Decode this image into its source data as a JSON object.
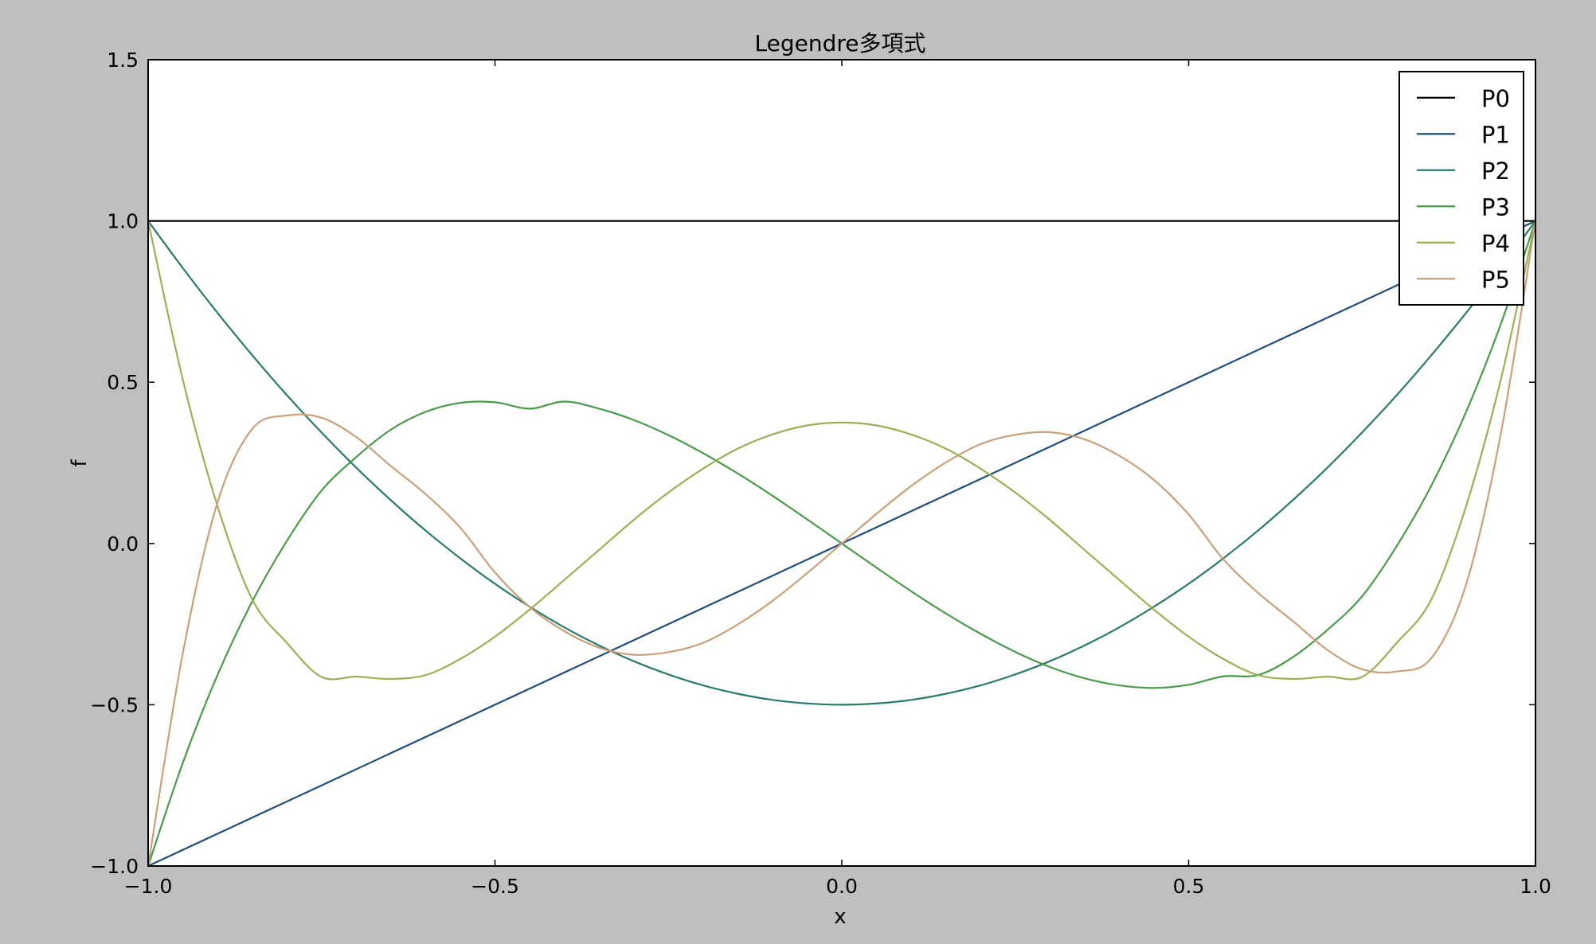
{
  "window": {
    "background": "#bfbfbf"
  },
  "chart_data": {
    "type": "line",
    "title": "Legendre多項式",
    "xlabel": "x",
    "ylabel": "f",
    "xlim": [
      -1.0,
      1.0
    ],
    "ylim": [
      -1.0,
      1.5
    ],
    "xticks": [
      -1.0,
      -0.5,
      0.0,
      0.5,
      1.0
    ],
    "xtick_labels": [
      "−1.0",
      "−0.5",
      "0.0",
      "0.5",
      "1.0"
    ],
    "yticks": [
      -1.0,
      -0.5,
      0.0,
      0.5,
      1.0,
      1.5
    ],
    "ytick_labels": [
      "−1.0",
      "−0.5",
      "0.0",
      "0.5",
      "1.0",
      "1.5"
    ],
    "grid": false,
    "legend_position": "top-right",
    "x": [
      -1.0,
      -0.95,
      -0.9,
      -0.85,
      -0.8,
      -0.75,
      -0.7,
      -0.65,
      -0.6,
      -0.55,
      -0.5,
      -0.45,
      -0.4,
      -0.35,
      -0.3,
      -0.25,
      -0.2,
      -0.15,
      -0.1,
      -0.05,
      0.0,
      0.05,
      0.1,
      0.15,
      0.2,
      0.25,
      0.3,
      0.35,
      0.4,
      0.45,
      0.5,
      0.55,
      0.6,
      0.65,
      0.7,
      0.75,
      0.8,
      0.85,
      0.9,
      0.95,
      1.0
    ],
    "series": [
      {
        "name": "P0",
        "color": "#000000",
        "values": [
          1,
          1,
          1,
          1,
          1,
          1,
          1,
          1,
          1,
          1,
          1,
          1,
          1,
          1,
          1,
          1,
          1,
          1,
          1,
          1,
          1,
          1,
          1,
          1,
          1,
          1,
          1,
          1,
          1,
          1,
          1,
          1,
          1,
          1,
          1,
          1,
          1,
          1,
          1,
          1,
          1
        ]
      },
      {
        "name": "P1",
        "color": "#1f4e79",
        "values": [
          -1.0,
          -0.95,
          -0.9,
          -0.85,
          -0.8,
          -0.75,
          -0.7,
          -0.65,
          -0.6,
          -0.55,
          -0.5,
          -0.45,
          -0.4,
          -0.35,
          -0.3,
          -0.25,
          -0.2,
          -0.15,
          -0.1,
          -0.05,
          0.0,
          0.05,
          0.1,
          0.15,
          0.2,
          0.25,
          0.3,
          0.35,
          0.4,
          0.45,
          0.5,
          0.55,
          0.6,
          0.65,
          0.7,
          0.75,
          0.8,
          0.85,
          0.9,
          0.95,
          1.0
        ]
      },
      {
        "name": "P2",
        "color": "#2a7a6b",
        "values": [
          1.0,
          0.854,
          0.715,
          0.584,
          0.46,
          0.344,
          0.235,
          0.134,
          0.04,
          -0.046,
          -0.125,
          -0.196,
          -0.26,
          -0.316,
          -0.365,
          -0.406,
          -0.44,
          -0.466,
          -0.485,
          -0.496,
          -0.5,
          -0.496,
          -0.485,
          -0.466,
          -0.44,
          -0.406,
          -0.365,
          -0.316,
          -0.26,
          -0.196,
          -0.125,
          -0.046,
          0.04,
          0.134,
          0.235,
          0.344,
          0.46,
          0.584,
          0.715,
          0.854,
          1.0
        ]
      },
      {
        "name": "P3",
        "color": "#4a9a4a",
        "values": [
          -1.0,
          -0.68,
          -0.408,
          -0.18,
          0.008,
          0.164,
          0.268,
          0.353,
          0.408,
          0.436,
          0.438,
          0.418,
          0.44,
          0.418,
          0.383,
          0.336,
          0.28,
          0.217,
          0.148,
          0.075,
          0.0,
          -0.075,
          -0.148,
          -0.217,
          -0.28,
          -0.336,
          -0.383,
          -0.418,
          -0.44,
          -0.448,
          -0.438,
          -0.412,
          -0.408,
          -0.353,
          -0.268,
          -0.164,
          -0.008,
          0.18,
          0.408,
          0.68,
          1.0
        ]
      },
      {
        "name": "P4",
        "color": "#9ab055",
        "values": [
          1.0,
          0.508,
          0.116,
          -0.173,
          -0.308,
          -0.414,
          -0.413,
          -0.42,
          -0.408,
          -0.358,
          -0.289,
          -0.205,
          -0.113,
          -0.02,
          0.073,
          0.158,
          0.232,
          0.294,
          0.338,
          0.366,
          0.375,
          0.366,
          0.338,
          0.294,
          0.232,
          0.158,
          0.073,
          -0.02,
          -0.113,
          -0.205,
          -0.289,
          -0.358,
          -0.408,
          -0.42,
          -0.413,
          -0.414,
          -0.308,
          -0.173,
          0.116,
          0.508,
          1.0
        ]
      },
      {
        "name": "P5",
        "color": "#c9a07a",
        "values": [
          -1.0,
          -0.34,
          0.127,
          0.355,
          0.397,
          0.39,
          0.33,
          0.24,
          0.153,
          0.049,
          -0.09,
          -0.197,
          -0.272,
          -0.323,
          -0.345,
          -0.337,
          -0.308,
          -0.251,
          -0.178,
          -0.092,
          0.0,
          0.092,
          0.178,
          0.251,
          0.308,
          0.337,
          0.345,
          0.323,
          0.272,
          0.197,
          0.09,
          -0.049,
          -0.153,
          -0.24,
          -0.33,
          -0.39,
          -0.397,
          -0.355,
          -0.127,
          0.34,
          1.0
        ]
      }
    ]
  }
}
